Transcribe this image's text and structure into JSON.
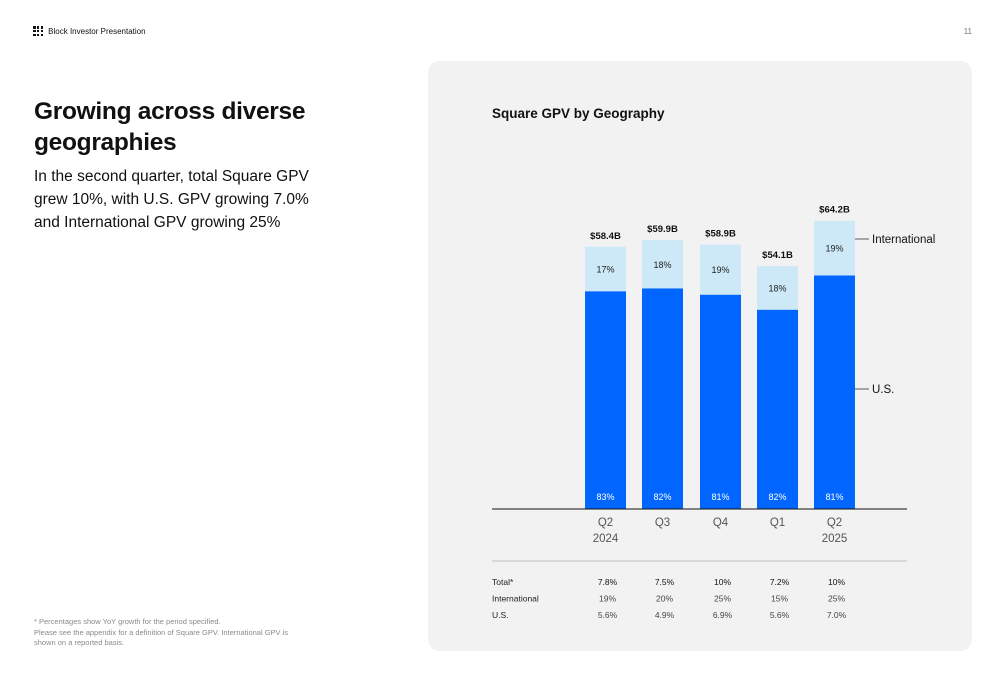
{
  "header": {
    "brand": "Block Investor Presentation",
    "page_number": "11"
  },
  "left": {
    "headline": "Growing across diverse geographies",
    "subtext": "In the second quarter, total Square GPV grew 10%, with U.S. GPV growing 7.0% and International GPV growing 25%",
    "footnote_lines": [
      "* Percentages show YoY growth for the period specified.",
      "Please see the appendix for a definition of Square GPV. International GPV is shown on a reported basis."
    ]
  },
  "colors": {
    "us": "#0066ff",
    "international": "#cde8f6",
    "panel_bg": "#f2f2f2"
  },
  "chart_data": {
    "type": "bar",
    "stacked": true,
    "title": "Square GPV by Geography",
    "categories": [
      [
        "Q2",
        "2024"
      ],
      [
        "Q3"
      ],
      [
        "Q4"
      ],
      [
        "Q1"
      ],
      [
        "Q2",
        "2025"
      ]
    ],
    "totals": [
      "$58.4B",
      "$59.9B",
      "$58.9B",
      "$54.1B",
      "$64.2B"
    ],
    "total_values_billions": [
      58.4,
      59.9,
      58.9,
      54.1,
      64.2
    ],
    "series": [
      {
        "name": "U.S.",
        "share_labels": [
          "83%",
          "82%",
          "81%",
          "82%",
          "81%"
        ],
        "share": [
          0.83,
          0.82,
          0.81,
          0.82,
          0.81
        ]
      },
      {
        "name": "International",
        "share_labels": [
          "17%",
          "18%",
          "19%",
          "18%",
          "19%"
        ],
        "share": [
          0.17,
          0.18,
          0.19,
          0.18,
          0.19
        ]
      }
    ],
    "growth_table": {
      "rows": [
        {
          "label": "Total*",
          "values": [
            "7.8%",
            "7.5%",
            "10%",
            "7.2%",
            "10%"
          ]
        },
        {
          "label": "International",
          "values": [
            "19%",
            "20%",
            "25%",
            "15%",
            "25%"
          ]
        },
        {
          "label": "U.S.",
          "values": [
            "5.6%",
            "4.9%",
            "6.9%",
            "5.6%",
            "7.0%"
          ]
        }
      ]
    }
  }
}
